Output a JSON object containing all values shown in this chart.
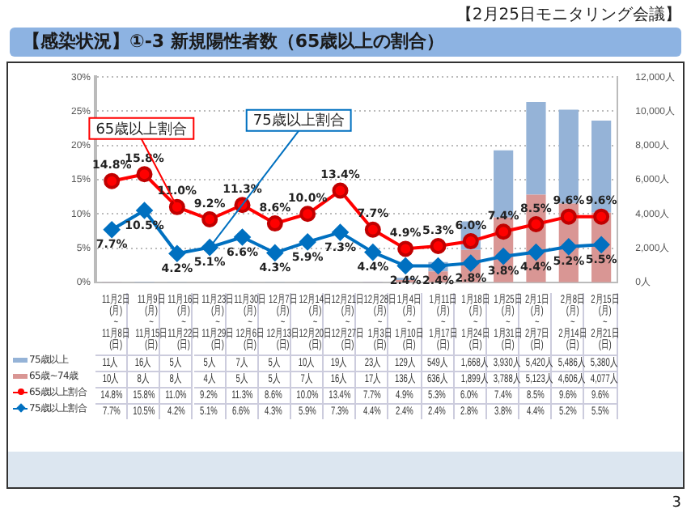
{
  "chart_data": {
    "type": "bar",
    "title": "【感染状況】①-3 新規陽性者数（65歳以上の割合）",
    "subtitle": "【2月25日モニタリング会議】",
    "categories": [
      "11月2日\n(月)\n~\n11月8日\n(日)",
      "11月9日\n(月)\n~\n11月15日\n(日)",
      "11月16日\n(月)\n~\n11月22日\n(日)",
      "11月23日\n(月)\n~\n11月29日\n(日)",
      "11月30日\n(月)\n~\n12月6日\n(日)",
      "12月7日\n(月)\n~\n12月13日\n(日)",
      "12月14日\n(月)\n~\n12月20日\n(日)",
      "12月21日\n(月)\n~\n12月27日\n(日)",
      "12月28日\n(月)\n~\n1月3日\n(日)",
      "1月4日\n(月)\n~\n1月10日\n(日)",
      "1月11日\n(月)\n~\n1月17日\n(日)",
      "1月18日\n(月)\n~\n1月24日\n(日)",
      "1月25日\n(月)\n~\n1月31日\n(日)",
      "2月1日\n(月)\n~\n2月7日\n(日)",
      "2月8日\n(月)\n~\n2月14日\n(日)",
      "2月15日\n(月)\n~\n2月21日\n(日)"
    ],
    "series": [
      {
        "name": "65歳~74歳",
        "type": "bar",
        "axis": "y2",
        "color": "#d99694",
        "values": [
          10,
          8,
          8,
          4,
          5,
          5,
          7,
          16,
          17,
          136,
          636,
          1899,
          3788,
          5123,
          4606,
          4077
        ],
        "value_labels": [
          "10人",
          "8人",
          "8人",
          "4人",
          "5人",
          "5人",
          "7人",
          "16人",
          "17人",
          "136人",
          "636人",
          "1,899人",
          "3,788人",
          "5,123人",
          "4,606人",
          "4,077人"
        ]
      },
      {
        "name": "75歳以上",
        "type": "bar",
        "axis": "y2",
        "color": "#95b3d7",
        "values": [
          11,
          16,
          5,
          5,
          7,
          5,
          10,
          19,
          23,
          129,
          549,
          1668,
          3930,
          5420,
          5486,
          5380
        ],
        "value_labels": [
          "11人",
          "16人",
          "5人",
          "5人",
          "7人",
          "5人",
          "10人",
          "19人",
          "23人",
          "129人",
          "549人",
          "1,668人",
          "3,930人",
          "5,420人",
          "5,486人",
          "5,380人"
        ]
      },
      {
        "name": "65歳以上割合",
        "type": "line",
        "color": "#ff0000",
        "marker": "circle",
        "values": [
          14.8,
          15.8,
          11.0,
          9.2,
          11.3,
          8.6,
          10.0,
          13.4,
          7.7,
          4.9,
          5.3,
          6.0,
          7.4,
          8.5,
          9.6,
          9.6
        ],
        "value_labels": [
          "14.8%",
          "15.8%",
          "11.0%",
          "9.2%",
          "11.3%",
          "8.6%",
          "10.0%",
          "13.4%",
          "7.7%",
          "4.9%",
          "5.3%",
          "6.0%",
          "7.4%",
          "8.5%",
          "9.6%",
          "9.6%"
        ]
      },
      {
        "name": "75歳以上割合",
        "type": "line",
        "color": "#0070c0",
        "marker": "diamond",
        "values": [
          7.7,
          10.5,
          4.2,
          5.1,
          6.6,
          4.3,
          5.9,
          7.3,
          4.4,
          2.4,
          2.4,
          2.8,
          3.8,
          4.4,
          5.2,
          5.5
        ],
        "value_labels": [
          "7.7%",
          "10.5%",
          "4.2%",
          "5.1%",
          "6.6%",
          "4.3%",
          "5.9%",
          "7.3%",
          "4.4%",
          "2.4%",
          "2.4%",
          "2.8%",
          "3.8%",
          "4.4%",
          "5.2%",
          "5.5%"
        ]
      }
    ],
    "stacked": true,
    "ylim": [
      0,
      30
    ],
    "yticks": [
      {
        "value": 0,
        "label": "0%"
      },
      {
        "value": 5,
        "label": "5%"
      },
      {
        "value": 10,
        "label": "10%"
      },
      {
        "value": 15,
        "label": "15%"
      },
      {
        "value": 20,
        "label": "20%"
      },
      {
        "value": 25,
        "label": "25%"
      },
      {
        "value": 30,
        "label": "30%"
      }
    ],
    "y2lim": [
      0,
      12000
    ],
    "y2ticks": [
      {
        "value": 0,
        "label": "0人"
      },
      {
        "value": 2000,
        "label": "2,000人"
      },
      {
        "value": 4000,
        "label": "4,000人"
      },
      {
        "value": 6000,
        "label": "6,000人"
      },
      {
        "value": 8000,
        "label": "8,000人"
      },
      {
        "value": 10000,
        "label": "10,000人"
      },
      {
        "value": 12000,
        "label": "12,000人"
      }
    ],
    "grid": "y",
    "legend": "bottom",
    "line_style": "solid",
    "annotations": [
      {
        "text": "65歳以上割合",
        "x": "11月16日\n(月)\n~\n11月22日\n(日)",
        "y": 11.0
      },
      {
        "text": "75歳以上割合",
        "x": "11月23日\n(月)\n~\n11月29日\n(日)",
        "y": 5.1
      },
      "3"
    ]
  }
}
